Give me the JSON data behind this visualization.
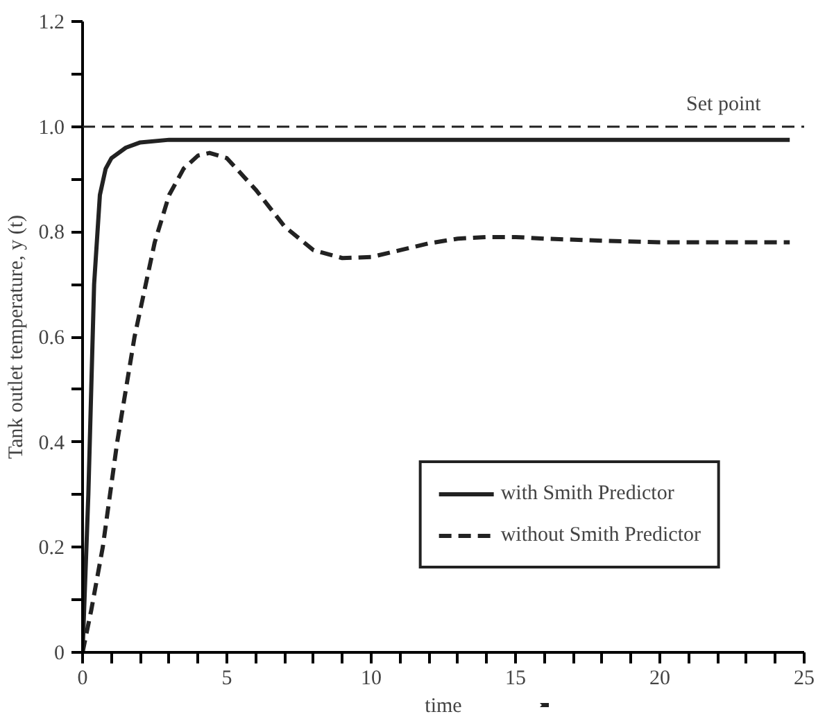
{
  "chart_data": {
    "type": "line",
    "xlabel": "time",
    "ylabel": "Tank outlet temperature, y (t)",
    "xlim": [
      0,
      25
    ],
    "ylim": [
      0,
      1.2
    ],
    "xticks": [
      0,
      {
        "value": 1,
        "label": null
      },
      {
        "value": 2,
        "label": null
      },
      {
        "value": 3,
        "label": null
      },
      {
        "value": 4,
        "label": null
      },
      5,
      {
        "value": 6,
        "label": null
      },
      {
        "value": 7,
        "label": null
      },
      {
        "value": 8,
        "label": null
      },
      {
        "value": 9,
        "label": null
      },
      10,
      {
        "value": 11,
        "label": null
      },
      {
        "value": 12,
        "label": null
      },
      {
        "value": 13,
        "label": null
      },
      {
        "value": 14,
        "label": null
      },
      15,
      {
        "value": 16,
        "label": null
      },
      {
        "value": 17,
        "label": null
      },
      {
        "value": 18,
        "label": null
      },
      {
        "value": 19,
        "label": null
      },
      20,
      {
        "value": 21,
        "label": null
      },
      {
        "value": 22,
        "label": null
      },
      {
        "value": 23,
        "label": null
      },
      {
        "value": 24,
        "label": null
      },
      25
    ],
    "yticks": [
      0,
      {
        "value": 0.1,
        "label": null
      },
      0.2,
      {
        "value": 0.3,
        "label": null
      },
      0.4,
      {
        "value": 0.5,
        "label": null
      },
      0.6,
      {
        "value": 0.7,
        "label": null
      },
      0.8,
      {
        "value": 0.9,
        "label": null
      },
      {
        "value": 1,
        "label": "1.0"
      },
      {
        "value": 1.1,
        "label": null
      },
      1.2
    ],
    "series": [
      {
        "name": "with Smith Predictor",
        "color": "#222222",
        "line_style": "solid",
        "x": [
          0,
          0.2,
          0.4,
          0.6,
          0.8,
          1,
          1.5,
          2,
          3,
          5,
          10,
          15,
          20,
          24.5
        ],
        "values": [
          0,
          0.3,
          0.7,
          0.87,
          0.92,
          0.94,
          0.96,
          0.97,
          0.975,
          0.975,
          0.975,
          0.975,
          0.975,
          0.975
        ]
      },
      {
        "name": "without Smith Predictor",
        "color": "#222222",
        "line_style": "dashed",
        "x": [
          0,
          0.3,
          0.7,
          1.2,
          1.8,
          2.5,
          3,
          3.5,
          4,
          4.4,
          5,
          6,
          7,
          8,
          9,
          10,
          11,
          12,
          13,
          14,
          15,
          16,
          18,
          20,
          22,
          24.5
        ],
        "values": [
          0,
          0.08,
          0.2,
          0.4,
          0.6,
          0.78,
          0.87,
          0.92,
          0.945,
          0.95,
          0.94,
          0.88,
          0.81,
          0.765,
          0.75,
          0.752,
          0.765,
          0.778,
          0.787,
          0.79,
          0.79,
          0.787,
          0.783,
          0.78,
          0.78,
          0.78
        ]
      }
    ],
    "ref_lines": [
      {
        "axis": "y",
        "value": 1.0,
        "label": "Set point",
        "color": "#222222",
        "line_style": "dashed"
      }
    ],
    "grid": false,
    "legend": "bottom right",
    "marker": "none"
  }
}
